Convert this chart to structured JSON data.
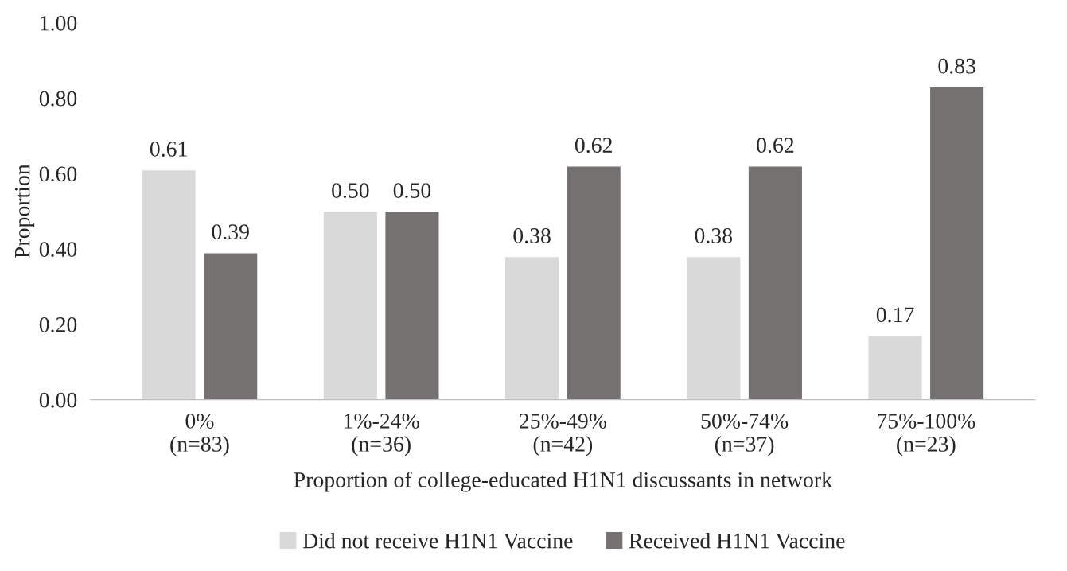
{
  "chart_data": {
    "type": "bar",
    "categories": [
      "0%\n(n=83)",
      "1%-24%\n(n=36)",
      "25%-49%\n(n=42)",
      "50%-74%\n(n=37)",
      "75%-100%\n(n=23)"
    ],
    "series": [
      {
        "name": "Did not receive H1N1 Vaccine",
        "color": "#d9d9d9",
        "values": [
          0.61,
          0.5,
          0.38,
          0.38,
          0.17
        ],
        "value_labels": [
          "0.61",
          "0.50",
          "0.38",
          "0.38",
          "0.17"
        ]
      },
      {
        "name": "Received H1N1 Vaccine",
        "color": "#767171",
        "values": [
          0.39,
          0.5,
          0.62,
          0.62,
          0.83
        ],
        "value_labels": [
          "0.39",
          "0.50",
          "0.62",
          "0.62",
          "0.83"
        ]
      }
    ],
    "xlabel": "Proportion of college-educated H1N1 discussants in network",
    "ylabel": "Proportion",
    "ylim": [
      0,
      1
    ],
    "yticks": [
      {
        "value": 0,
        "label": "0.00"
      },
      {
        "value": 0.2,
        "label": "0.20"
      },
      {
        "value": 0.4,
        "label": "0.40"
      },
      {
        "value": 0.6,
        "label": "0.60"
      },
      {
        "value": 0.8,
        "label": "0.80"
      },
      {
        "value": 1,
        "label": "1.00"
      }
    ],
    "grid": false,
    "legend": "bottom"
  }
}
